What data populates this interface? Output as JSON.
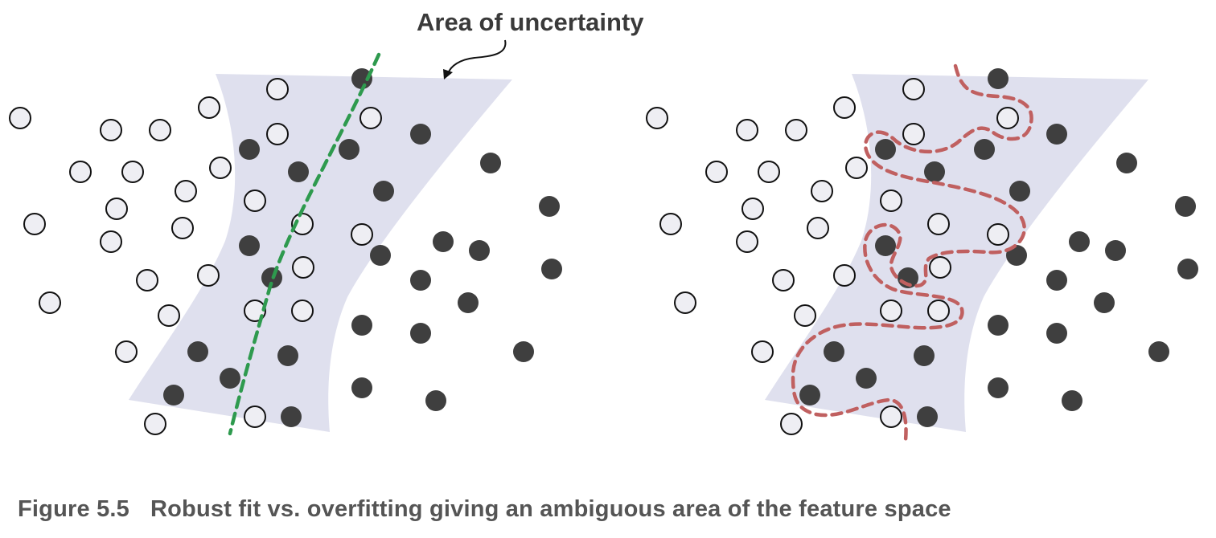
{
  "annotation": {
    "label": "Area of uncertainty"
  },
  "caption": {
    "figure_number": "Figure 5.5",
    "text": "Robust fit vs. overfitting giving an ambiguous area of the feature space"
  },
  "colors": {
    "region_fill": "#dfe0ee",
    "open_point_fill": "#eeeef3",
    "open_point_stroke": "#111111",
    "filled_point": "#3f3f3f",
    "robust_boundary": "#2e9a4e",
    "overfit_boundary": "#c06060",
    "caption_text": "#555555"
  },
  "panels": [
    {
      "name": "robust-fit",
      "boundary_style": "smooth-dashed",
      "open_points": [
        [
          25,
          147
        ],
        [
          138,
          162
        ],
        [
          199,
          162
        ],
        [
          260,
          134
        ],
        [
          345,
          111
        ],
        [
          461,
          147
        ],
        [
          345,
          167
        ],
        [
          100,
          214
        ],
        [
          165,
          214
        ],
        [
          274,
          209
        ],
        [
          231,
          238
        ],
        [
          145,
          260
        ],
        [
          43,
          279
        ],
        [
          138,
          301
        ],
        [
          227,
          284
        ],
        [
          317,
          250
        ],
        [
          376,
          279
        ],
        [
          450,
          292
        ],
        [
          183,
          349
        ],
        [
          259,
          343
        ],
        [
          377,
          333
        ],
        [
          62,
          377
        ],
        [
          210,
          393
        ],
        [
          317,
          387
        ],
        [
          376,
          387
        ],
        [
          157,
          438
        ],
        [
          193,
          528
        ],
        [
          317,
          519
        ]
      ],
      "filled_points": [
        [
          450,
          98
        ],
        [
          523,
          167
        ],
        [
          434,
          186
        ],
        [
          310,
          186
        ],
        [
          371,
          214
        ],
        [
          610,
          203
        ],
        [
          477,
          238
        ],
        [
          683,
          257
        ],
        [
          551,
          301
        ],
        [
          473,
          318
        ],
        [
          310,
          306
        ],
        [
          596,
          312
        ],
        [
          686,
          335
        ],
        [
          338,
          346
        ],
        [
          523,
          349
        ],
        [
          582,
          377
        ],
        [
          450,
          405
        ],
        [
          523,
          415
        ],
        [
          246,
          438
        ],
        [
          358,
          443
        ],
        [
          651,
          438
        ],
        [
          286,
          471
        ],
        [
          216,
          492
        ],
        [
          450,
          483
        ],
        [
          542,
          499
        ],
        [
          362,
          519
        ]
      ]
    },
    {
      "name": "overfitting",
      "boundary_style": "wiggly-dashed",
      "open_points": [
        [
          817,
          147
        ],
        [
          929,
          162
        ],
        [
          990,
          162
        ],
        [
          1050,
          134
        ],
        [
          1136,
          111
        ],
        [
          1253,
          147
        ],
        [
          1136,
          167
        ],
        [
          891,
          214
        ],
        [
          956,
          214
        ],
        [
          1065,
          209
        ],
        [
          1022,
          238
        ],
        [
          936,
          260
        ],
        [
          834,
          279
        ],
        [
          929,
          301
        ],
        [
          1017,
          284
        ],
        [
          1108,
          250
        ],
        [
          1167,
          279
        ],
        [
          1241,
          292
        ],
        [
          974,
          349
        ],
        [
          1050,
          343
        ],
        [
          1169,
          333
        ],
        [
          852,
          377
        ],
        [
          1001,
          393
        ],
        [
          1108,
          387
        ],
        [
          1167,
          387
        ],
        [
          948,
          438
        ],
        [
          984,
          528
        ],
        [
          1108,
          519
        ]
      ],
      "filled_points": [
        [
          1241,
          98
        ],
        [
          1314,
          167
        ],
        [
          1224,
          186
        ],
        [
          1101,
          186
        ],
        [
          1162,
          214
        ],
        [
          1401,
          203
        ],
        [
          1268,
          238
        ],
        [
          1474,
          257
        ],
        [
          1342,
          301
        ],
        [
          1264,
          318
        ],
        [
          1101,
          306
        ],
        [
          1387,
          312
        ],
        [
          1477,
          335
        ],
        [
          1129,
          346
        ],
        [
          1314,
          349
        ],
        [
          1373,
          377
        ],
        [
          1241,
          405
        ],
        [
          1314,
          415
        ],
        [
          1037,
          438
        ],
        [
          1149,
          443
        ],
        [
          1441,
          438
        ],
        [
          1077,
          471
        ],
        [
          1007,
          492
        ],
        [
          1241,
          483
        ],
        [
          1333,
          499
        ],
        [
          1153,
          519
        ]
      ]
    }
  ]
}
